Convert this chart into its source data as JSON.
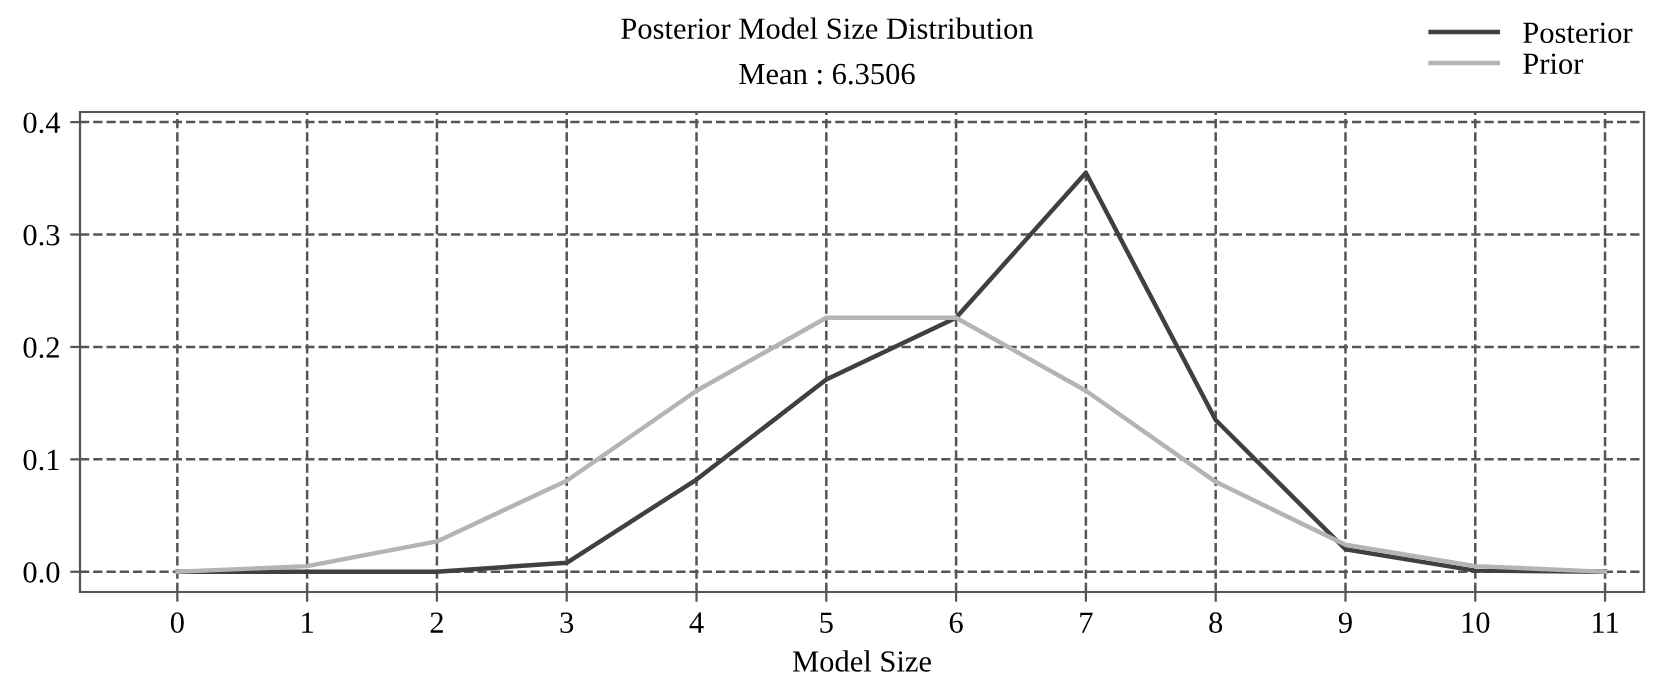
{
  "chart_data": {
    "type": "line",
    "title": "Posterior Model Size Distribution",
    "subtitle": "Mean : 6.3506",
    "xlabel": "Model Size",
    "x": [
      0,
      1,
      2,
      3,
      4,
      5,
      6,
      7,
      8,
      9,
      10,
      11
    ],
    "series": [
      {
        "name": "Posterior",
        "color": "#404040",
        "values": [
          0.0,
          0.0,
          0.0,
          0.008,
          0.082,
          0.171,
          0.226,
          0.355,
          0.135,
          0.02,
          0.001,
          0.0
        ]
      },
      {
        "name": "Prior",
        "color": "#b4b4b4",
        "values": [
          0.0,
          0.005,
          0.027,
          0.081,
          0.161,
          0.226,
          0.226,
          0.161,
          0.08,
          0.024,
          0.005,
          0.0
        ]
      }
    ],
    "xlim": [
      -0.75,
      11.3
    ],
    "ylim": [
      -0.018,
      0.409
    ],
    "xticks": [
      0,
      1,
      2,
      3,
      4,
      5,
      6,
      7,
      8,
      9,
      10,
      11
    ],
    "yticks": [
      {
        "value": 0,
        "label": "0.0"
      },
      {
        "value": 0.1,
        "label": "0.1"
      },
      {
        "value": 0.2,
        "label": "0.2"
      },
      {
        "value": 0.3,
        "label": "0.3"
      },
      {
        "value": 0.4,
        "label": "0.4"
      }
    ],
    "grid": true,
    "legend": "top right",
    "marker": "none",
    "line_style": "solid"
  }
}
